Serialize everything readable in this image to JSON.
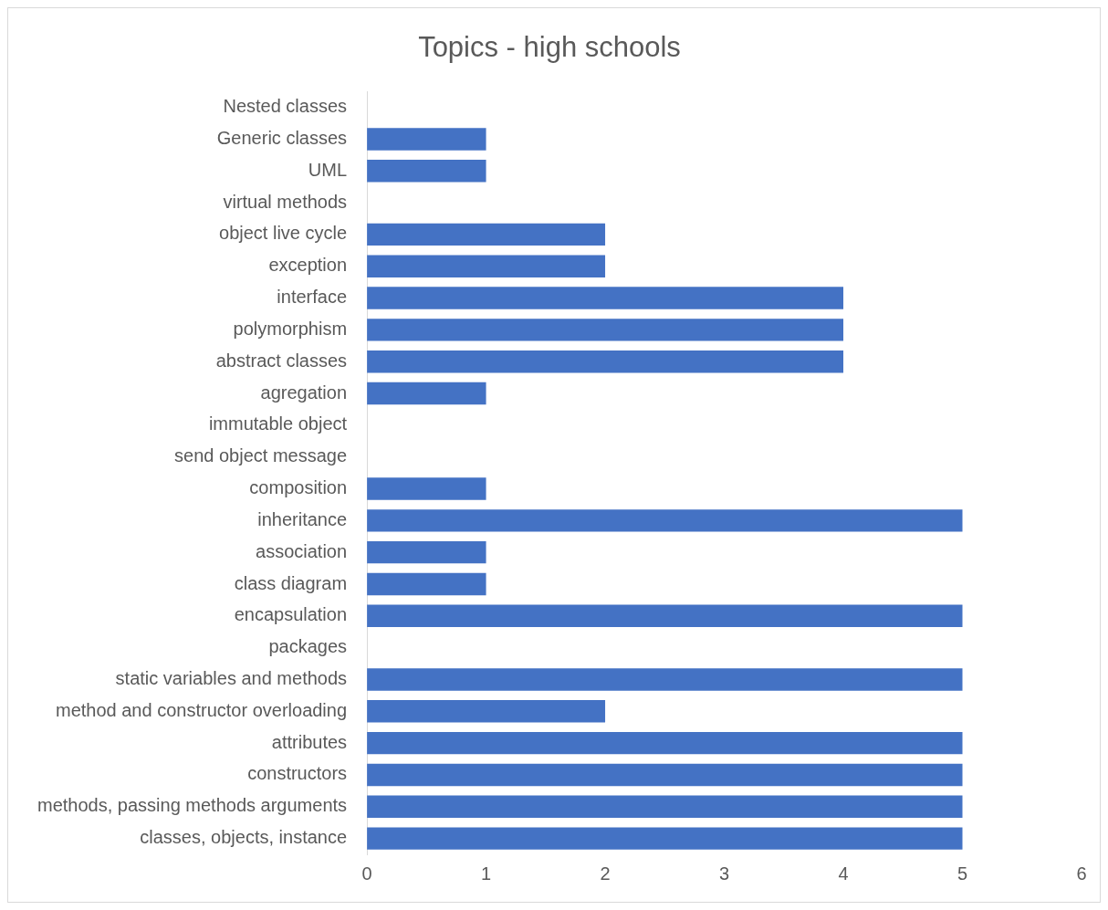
{
  "chart_data": {
    "type": "bar",
    "orientation": "horizontal",
    "title": "Topics - high schools",
    "categories": [
      "Nested classes",
      "Generic classes",
      "UML",
      "virtual methods",
      "object live cycle",
      "exception",
      "interface",
      "polymorphism",
      "abstract classes",
      "agregation",
      "immutable object",
      "send object message",
      "composition",
      "inheritance",
      "association",
      "class diagram",
      "encapsulation",
      "packages",
      "static variables and methods",
      "method and constructor overloading",
      "attributes",
      "constructors",
      "methods, passing methods arguments",
      "classes, objects, instance"
    ],
    "values": [
      0,
      1,
      1,
      0,
      2,
      2,
      4,
      4,
      4,
      1,
      0,
      0,
      1,
      5,
      1,
      1,
      5,
      0,
      5,
      2,
      5,
      5,
      5,
      5
    ],
    "color": "#4472c4",
    "xlim": [
      0,
      6
    ],
    "xticks": [
      0,
      1,
      2,
      3,
      4,
      5,
      6
    ]
  }
}
